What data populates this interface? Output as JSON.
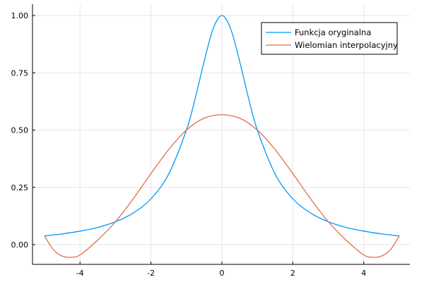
{
  "chart_data": {
    "type": "line",
    "title": "",
    "xlabel": "",
    "ylabel": "",
    "xlim": [
      -5.0,
      5.0
    ],
    "ylim": [
      -0.05,
      1.0
    ],
    "xticks": [
      -4,
      -2,
      0,
      2,
      4
    ],
    "xtick_labels": [
      "-4",
      "-2",
      "0",
      "2",
      "4"
    ],
    "yticks": [
      0.0,
      0.25,
      0.5,
      0.75,
      1.0
    ],
    "ytick_labels": [
      "0.00",
      "0.25",
      "0.50",
      "0.75",
      "1.00"
    ],
    "grid": true,
    "legend_position": "top-right",
    "series": [
      {
        "name": "Funkcja oryginalna",
        "color": "#009AF9",
        "x": [
          -5.0,
          -4.5,
          -4.0,
          -3.5,
          -3.0,
          -2.5,
          -2.0,
          -1.5,
          -1.0,
          -0.75,
          -0.5,
          -0.25,
          0.0,
          0.25,
          0.5,
          0.75,
          1.0,
          1.5,
          2.0,
          2.5,
          3.0,
          3.5,
          4.0,
          4.5,
          5.0
        ],
        "y": [
          0.038,
          0.047,
          0.059,
          0.075,
          0.1,
          0.138,
          0.2,
          0.308,
          0.5,
          0.64,
          0.8,
          0.941,
          1.0,
          0.941,
          0.8,
          0.64,
          0.5,
          0.308,
          0.2,
          0.138,
          0.1,
          0.075,
          0.059,
          0.047,
          0.038
        ]
      },
      {
        "name": "Wielomian interpolacyjny",
        "color": "#E26F46",
        "x": [
          -5.0,
          -4.75,
          -4.5,
          -4.25,
          -4.0,
          -3.5,
          -3.0,
          -2.5,
          -2.0,
          -1.5,
          -1.0,
          -0.5,
          0.0,
          0.5,
          1.0,
          1.5,
          2.0,
          2.5,
          3.0,
          3.5,
          4.0,
          4.25,
          4.5,
          4.75,
          5.0
        ],
        "y": [
          0.038,
          -0.022,
          -0.05,
          -0.055,
          -0.045,
          0.02,
          0.1,
          0.2,
          0.31,
          0.415,
          0.5,
          0.552,
          0.567,
          0.552,
          0.5,
          0.415,
          0.31,
          0.2,
          0.1,
          0.02,
          -0.045,
          -0.055,
          -0.05,
          -0.022,
          0.038
        ]
      }
    ]
  }
}
